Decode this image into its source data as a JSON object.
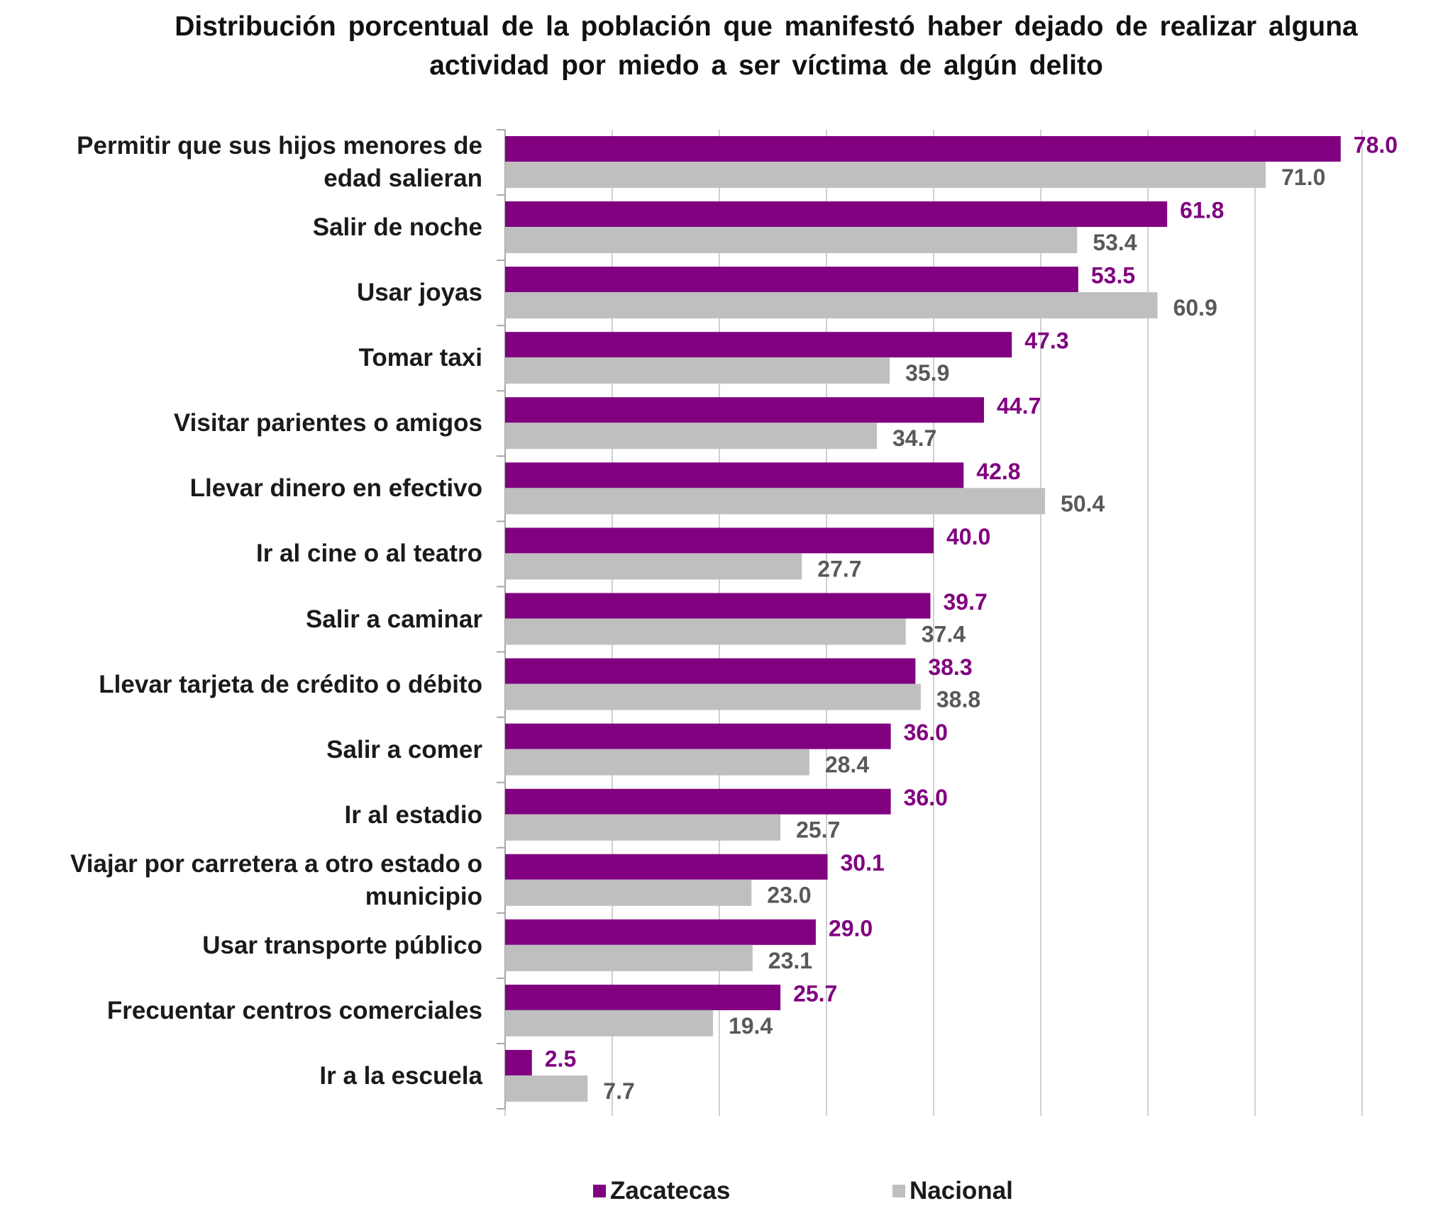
{
  "chart_data": {
    "type": "barh",
    "title": "Distribución porcentual de la población que manifestó haber dejado de realizar alguna actividad por miedo a ser víctima de algún delito",
    "categories": [
      "Permitir que sus hijos menores de edad salieran",
      "Salir de noche",
      "Usar joyas",
      "Tomar taxi",
      "Visitar parientes o amigos",
      "Llevar dinero en efectivo",
      "Ir al cine o al teatro",
      "Salir a caminar",
      "Llevar tarjeta de crédito o débito",
      "Salir a comer",
      "Ir al estadio",
      "Viajar por carretera a otro estado o municipio",
      "Usar transporte público",
      "Frecuentar centros comerciales",
      "Ir a la escuela"
    ],
    "series": [
      {
        "name": "Zacatecas",
        "color": "#800080",
        "label_color": "#800080",
        "values": [
          78.0,
          61.8,
          53.5,
          47.3,
          44.7,
          42.8,
          40.0,
          39.7,
          38.3,
          36.0,
          36.0,
          30.1,
          29.0,
          25.7,
          2.5
        ],
        "value_labels": [
          "78.0",
          "61.8",
          "53.5",
          "47.3",
          "44.7",
          "42.8",
          "40.0",
          "39.7",
          "38.3",
          "36.0",
          "36.0",
          "30.1",
          "29.0",
          "25.7",
          "2.5"
        ]
      },
      {
        "name": "Nacional",
        "color": "#bfbfbf",
        "label_color": "#595959",
        "values": [
          71.0,
          53.4,
          60.9,
          35.9,
          34.7,
          50.4,
          27.7,
          37.4,
          38.8,
          28.4,
          25.7,
          23.0,
          23.1,
          19.4,
          7.7
        ],
        "value_labels": [
          "71.0",
          "53.4",
          "60.9",
          "35.9",
          "34.7",
          "50.4",
          "27.7",
          "37.4",
          "38.8",
          "28.4",
          "25.7",
          "23.0",
          "23.1",
          "19.4",
          "7.7"
        ]
      }
    ],
    "xlim": [
      0,
      80
    ],
    "xticks": [
      0,
      10,
      20,
      30,
      40,
      50,
      60,
      70,
      80
    ],
    "grid": true,
    "legend": "bottom"
  }
}
